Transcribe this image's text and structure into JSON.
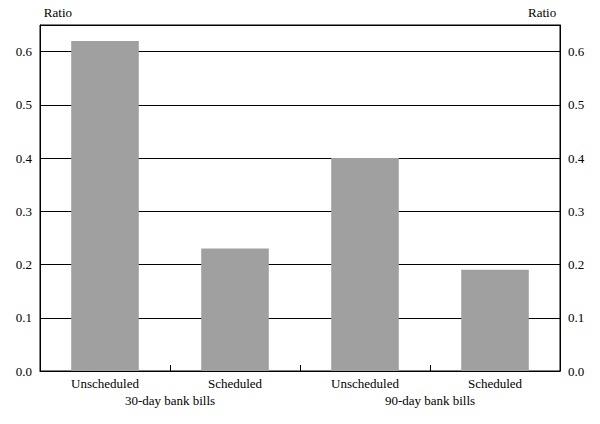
{
  "chart_data": {
    "type": "bar",
    "categories": [
      "Unscheduled",
      "Scheduled",
      "Unscheduled",
      "Scheduled"
    ],
    "group_labels": [
      "30-day bank bills",
      "90-day bank bills"
    ],
    "values": [
      0.62,
      0.23,
      0.4,
      0.19
    ],
    "color": "#a0a0a0",
    "ylabel": "Ratio",
    "y2label": "Ratio",
    "ylim": [
      0,
      0.65
    ],
    "yticks": [
      {
        "value": 0,
        "label": "0.0"
      },
      0.1,
      0.2,
      0.3,
      0.4,
      0.5,
      0.6
    ],
    "y2lim": [
      0,
      0.65
    ],
    "y2ticks": [
      {
        "value": 0,
        "label": "0.0"
      },
      0.1,
      0.2,
      0.3,
      0.4,
      0.5,
      0.6
    ],
    "grid": true
  }
}
